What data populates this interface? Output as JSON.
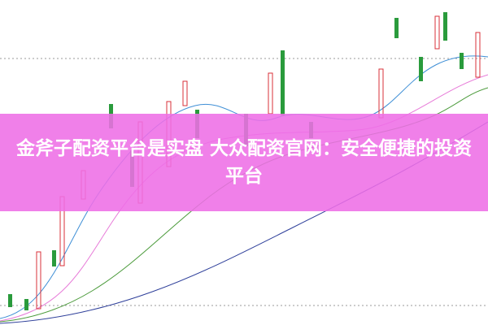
{
  "title": "金斧子配资平台是实盘 大众配资官网：安全便捷的投资平台"
}
